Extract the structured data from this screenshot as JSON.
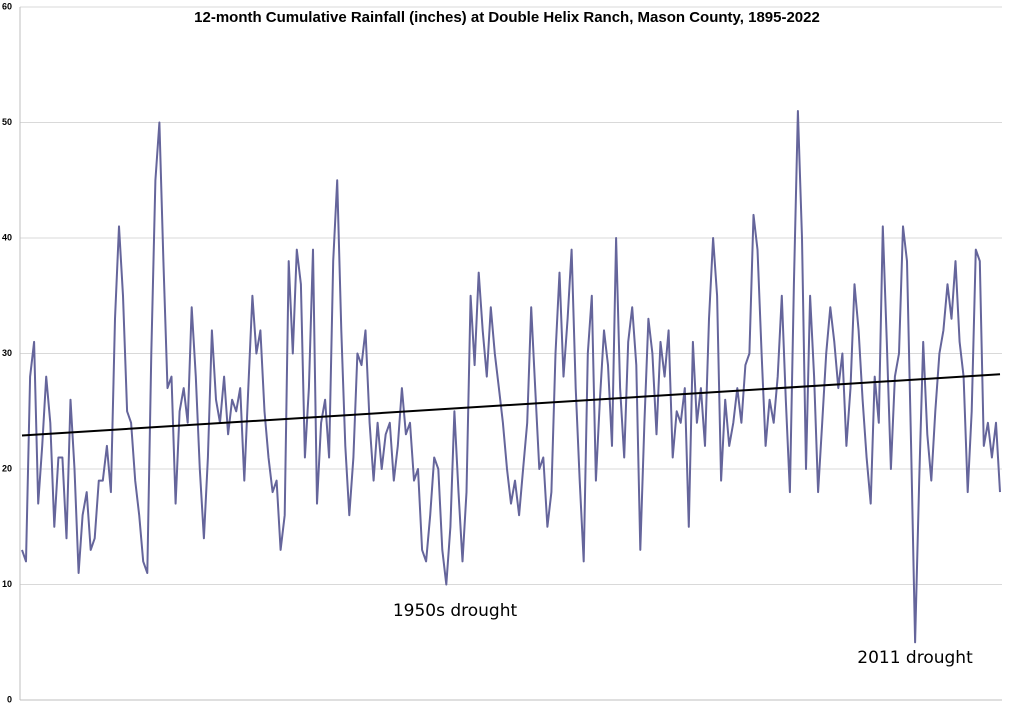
{
  "chart_data": {
    "type": "line",
    "title": "12-month Cumulative Rainfall (inches) at Double Helix Ranch, Mason County, 1895-2022",
    "annotations": [
      "1950s drought",
      "2011 drought"
    ],
    "color": "#65659b",
    "values": [
      13,
      12,
      28,
      31,
      17,
      22,
      28,
      24,
      15,
      21,
      21,
      14,
      26,
      20,
      11,
      16,
      18,
      13,
      14,
      19,
      19,
      22,
      18,
      33,
      41,
      35,
      25,
      24,
      19,
      16,
      12,
      11,
      30,
      45,
      50,
      38,
      27,
      28,
      17,
      25,
      27,
      24,
      34,
      28,
      20,
      14,
      21,
      32,
      26,
      24,
      28,
      23,
      26,
      25,
      27,
      19,
      27,
      35,
      30,
      32,
      25,
      21,
      18,
      19,
      13,
      16,
      38,
      30,
      39,
      36,
      21,
      27,
      39,
      17,
      24,
      26,
      21,
      38,
      45,
      32,
      22,
      16,
      21,
      30,
      29,
      32,
      24,
      19,
      24,
      20,
      23,
      24,
      19,
      22,
      27,
      23,
      24,
      19,
      20,
      13,
      12,
      16,
      21,
      20,
      13,
      10,
      15,
      25,
      18,
      12,
      18,
      35,
      29,
      37,
      32,
      28,
      34,
      30,
      27,
      24,
      20,
      17,
      19,
      16,
      20,
      24,
      34,
      27,
      20,
      21,
      15,
      18,
      30,
      37,
      28,
      33,
      39,
      27,
      19,
      12,
      30,
      35,
      19,
      26,
      32,
      29,
      22,
      40,
      27,
      21,
      31,
      34,
      29,
      13,
      24,
      33,
      30,
      23,
      31,
      28,
      32,
      21,
      25,
      24,
      27,
      15,
      31,
      24,
      27,
      22,
      33,
      40,
      35,
      19,
      26,
      22,
      24,
      27,
      24,
      29,
      30,
      42,
      39,
      30,
      22,
      26,
      24,
      28,
      35,
      26,
      18,
      36,
      51,
      40,
      20,
      35,
      28,
      18,
      24,
      30,
      34,
      31,
      27,
      30,
      22,
      27,
      36,
      32,
      26,
      21,
      17,
      28,
      24,
      41,
      31,
      20,
      28,
      30,
      41,
      38,
      22,
      5,
      19,
      31,
      23,
      19,
      25,
      30,
      32,
      36,
      33,
      38,
      31,
      28,
      18,
      25,
      39,
      38,
      22,
      24,
      21,
      24,
      18
    ],
    "trend": [
      22.9,
      28.2
    ],
    "ylim": [
      0,
      60
    ],
    "yticks": [
      0,
      10,
      20,
      30,
      40,
      50,
      60
    ],
    "grid": true
  }
}
